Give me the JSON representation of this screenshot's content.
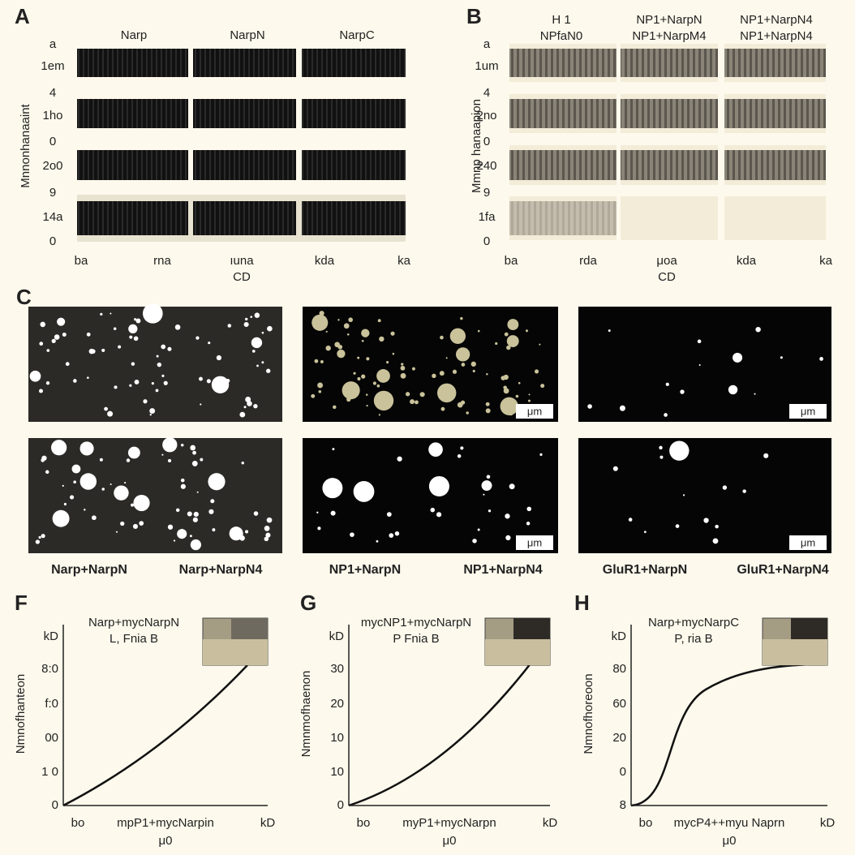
{
  "panel_a": {
    "label": "A",
    "columns": [
      "Narp",
      "NarpN",
      "NarpC"
    ],
    "row_labels": [
      "a",
      "1em",
      "4",
      "1ho",
      "0",
      "2o0",
      "9",
      "14a",
      "0"
    ],
    "y_label": "Mnnonhanaaint",
    "x_ticks": [
      "ba",
      "rna",
      "ıuna",
      "kda",
      "ka"
    ],
    "x_label": "CD"
  },
  "panel_b": {
    "label": "B",
    "columns": [
      [
        "H 1",
        "NPfaN0"
      ],
      [
        "NP1+NarpN",
        "NP1+NarpM4"
      ],
      [
        "NP1+NarpN4",
        "NP1+NarpN4"
      ]
    ],
    "row_labels": [
      "a",
      "1um",
      "4",
      "2no",
      "0",
      "240",
      "9",
      "1fa",
      "0"
    ],
    "y_label": "Mmnp hanaapion",
    "x_ticks": [
      "ba",
      "rda",
      "μoa",
      "kda",
      "ka"
    ],
    "x_label": "CD"
  },
  "panel_c": {
    "label": "C",
    "scale_labels": [
      "μm",
      "μm",
      "μm",
      "μm"
    ],
    "captions": [
      "Narp+NarpN",
      "Narp+NarpN4",
      "NP1+NarpN",
      "NP1+NarpN4",
      "GluR1+NarpN",
      "GluR1+NarpN4"
    ]
  },
  "panel_f": {
    "label": "F",
    "title": [
      "Narp+mycNarpN",
      "L,      Fnia B"
    ],
    "y_label": "Nmnofhanteon",
    "y_ticks": [
      "kD",
      "8:0",
      "f:0",
      "00",
      "1 0",
      "0"
    ],
    "x_ticks": [
      "bo",
      "mpP1+mycNarpin",
      "kD"
    ],
    "x_label": "μ0"
  },
  "panel_g": {
    "label": "G",
    "title": [
      "mycNP1+mycNarpN",
      "P      Fnia B"
    ],
    "y_label": "Nmnmofhaenon",
    "y_ticks": [
      "kD",
      "30",
      "20",
      "10",
      "10",
      "0"
    ],
    "x_ticks": [
      "bo",
      "myP1+mycNarpn",
      "kD"
    ],
    "x_label": "μ0"
  },
  "panel_h": {
    "label": "H",
    "title": [
      "Narp+mycNarpC",
      "P,       ria B"
    ],
    "y_label": "Nmnofhoreoon",
    "y_ticks": [
      "kD",
      "80",
      "60",
      "20",
      "0",
      "8"
    ],
    "x_ticks": [
      "bo",
      "mycP4++myu Naprn",
      "kD"
    ],
    "x_label": "μ0"
  }
}
